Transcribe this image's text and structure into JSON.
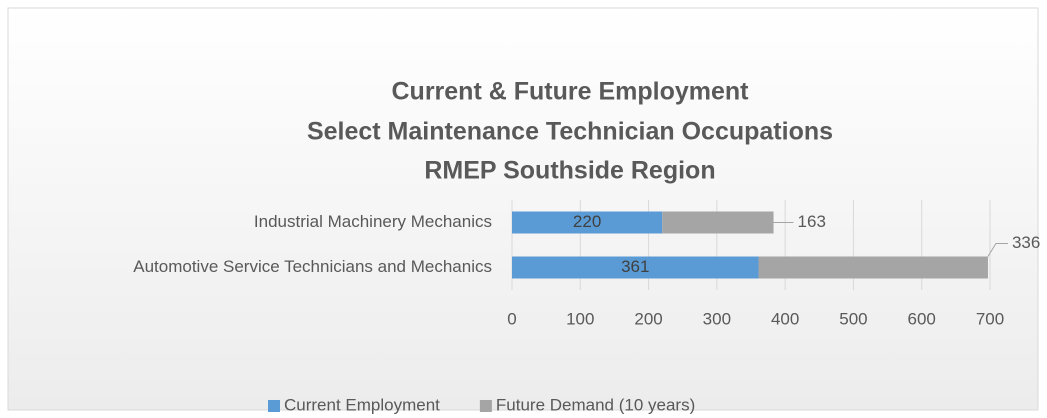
{
  "chart_data": {
    "type": "stacked-bar-horizontal",
    "title": [
      "Current & Future Employment",
      "Select Maintenance Technician Occupations",
      "RMEP Southside Region"
    ],
    "categories": [
      "Industrial Machinery Mechanics",
      "Automotive Service Technicians and Mechanics"
    ],
    "series": [
      {
        "name": "Current Employment",
        "color": "#5b9bd5",
        "values": [
          220,
          361
        ]
      },
      {
        "name": "Future Demand (10 years)",
        "color": "#a5a5a5",
        "values": [
          163,
          336
        ]
      }
    ],
    "xlim": [
      0,
      700
    ],
    "xticks": [
      0,
      100,
      200,
      300,
      400,
      500,
      600,
      700
    ],
    "grid": true,
    "legend": "bottom"
  }
}
